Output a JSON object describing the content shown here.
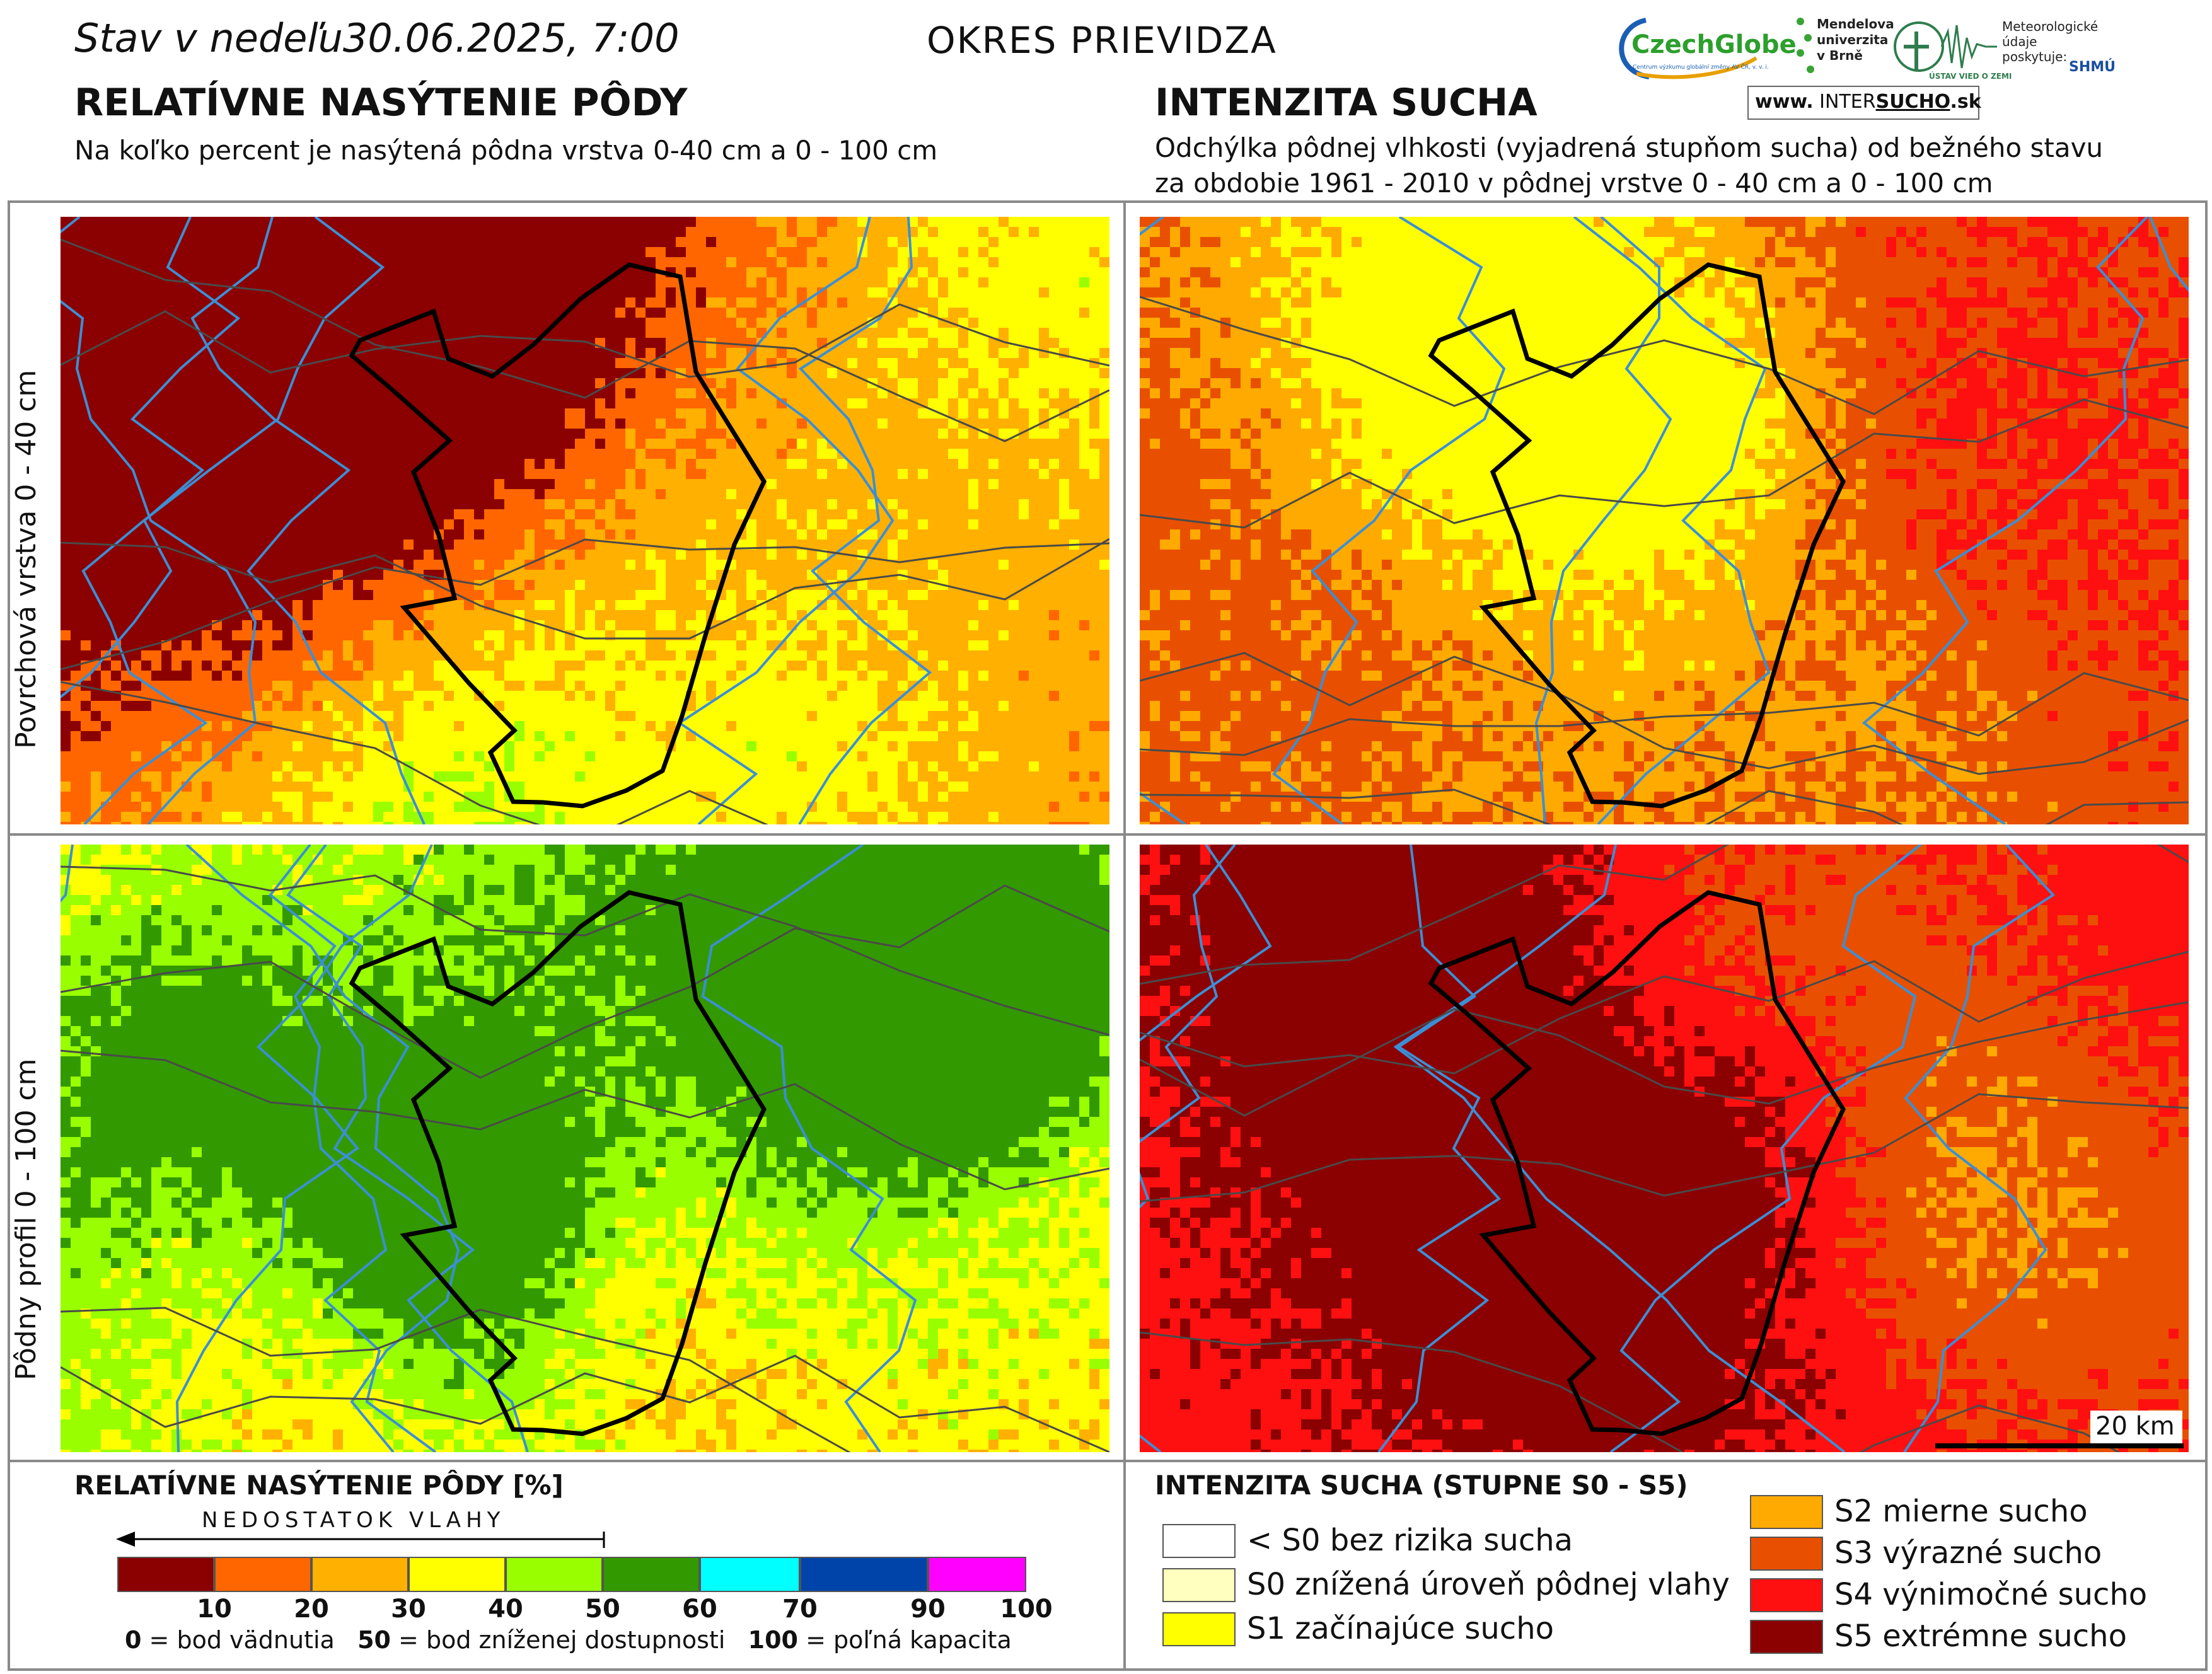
{
  "header": {
    "date_label": "Stav v nedeľu",
    "date_value": "30.06.2025, 7:00",
    "district": "OKRES  PRIEVIDZA"
  },
  "left_panel": {
    "title": "RELATÍVNE NASÝTENIE PÔDY",
    "subtitle": "Na koľko percent je nasýtená pôdna vrstva 0-40 cm a 0 - 100 cm"
  },
  "right_panel": {
    "title": "INTENZITA SUCHA",
    "subtitle_line1": "Odchýlka pôdnej vlhkosti (vyjadrená stupňom sucha) od bežného stavu",
    "subtitle_line2": "za obdobie 1961 - 2010 v pôdnej vrstve 0 - 40 cm a 0 - 100 cm"
  },
  "row_labels": {
    "top": "Povrchová vrstva 0 - 40 cm",
    "bottom": "Pôdny profil 0 - 100 cm"
  },
  "scale_bar": "20 km",
  "logos": {
    "czechglobe": "CzechGlobe",
    "czechglobe_sub": "Centrum výzkumu globální změny AV ČR, v. v. i.",
    "mendel": "Mendelova\nuniverzita\nv Brně",
    "uvz": "ÚSTAV VIED O ZEMI",
    "meteo": "Meteorologické\núdaje\nposkytuje:",
    "shmu": "SHMÚ",
    "intersucho_prefix": "www.",
    "intersucho_a": "INTER",
    "intersucho_b": "SUCHO",
    "intersucho_suffix": ".sk"
  },
  "legend_saturation": {
    "title": "RELATÍVNE NASÝTENIE PÔDY [%]",
    "arrow_label": "NEDOSTATOK VLAHY",
    "colors": [
      "#8b0000",
      "#ff6600",
      "#ffb000",
      "#ffff00",
      "#99ff00",
      "#339900",
      "#00ffff",
      "#0044aa",
      "#ff00ff"
    ],
    "ticks": [
      "10",
      "20",
      "30",
      "40",
      "50",
      "60",
      "70",
      "90",
      "100"
    ],
    "note_0_bold": "0",
    "note_0": " = bod vädnutia",
    "note_50_bold": "50",
    "note_50": " = bod zníženej dostupnosti",
    "note_100_bold": "100",
    "note_100": " = poľná kapacita"
  },
  "legend_drought": {
    "title": "INTENZITA SUCHA (STUPNE S0 - S5)",
    "items": [
      {
        "label": "< S0 bez rizika sucha",
        "color": "#ffffff"
      },
      {
        "label": "S0 znížená úroveň pôdnej vlahy",
        "color": "#ffffc0"
      },
      {
        "label": "S1 začínajúce sucho",
        "color": "#ffff00"
      },
      {
        "label": "S2 mierne sucho",
        "color": "#ffaa00"
      },
      {
        "label": "S3 výrazné sucho",
        "color": "#e85000"
      },
      {
        "label": "S4 výnimočné sucho",
        "color": "#ff1010"
      },
      {
        "label": "S5 extrémne sucho",
        "color": "#8b0000"
      }
    ]
  }
}
